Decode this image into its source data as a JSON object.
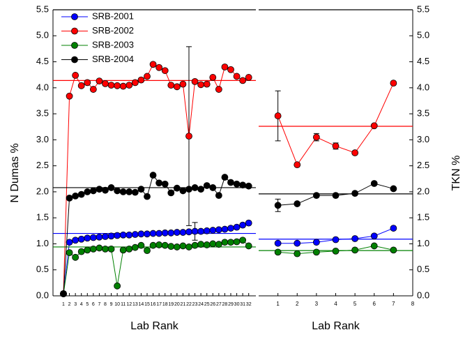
{
  "chart_data": [
    {
      "type": "line",
      "xlabel": "Lab Rank",
      "ylabel": "N Dumas  %",
      "legend": "upper left",
      "x": [
        1,
        2,
        3,
        4,
        5,
        6,
        7,
        8,
        9,
        10,
        11,
        12,
        13,
        14,
        15,
        16,
        17,
        18,
        19,
        20,
        21,
        22,
        23,
        24,
        25,
        26,
        27,
        28,
        29,
        30,
        31,
        32
      ],
      "xlim": [
        -0.75,
        33.2
      ],
      "xticks": [
        1,
        2,
        3,
        4,
        5,
        6,
        7,
        8,
        9,
        10,
        11,
        12,
        13,
        14,
        15,
        16,
        17,
        18,
        19,
        20,
        21,
        22,
        23,
        24,
        25,
        26,
        27,
        28,
        29,
        30,
        31,
        32
      ],
      "ylim": [
        0,
        5.5
      ],
      "yticks": [
        {
          "value": 0,
          "label": "0.0"
        },
        0.5,
        {
          "value": 1,
          "label": "1.0"
        },
        1.5,
        {
          "value": 2,
          "label": "2.0"
        },
        2.5,
        {
          "value": 3,
          "label": "3.0"
        },
        3.5,
        {
          "value": 4,
          "label": "4.0"
        },
        4.5,
        {
          "value": 5,
          "label": "5.0"
        },
        5.5
      ],
      "series": [
        {
          "name": "SRB-2001",
          "color": "#0000ff",
          "mean": 1.2,
          "values": [
            0.04,
            1.03,
            1.07,
            1.09,
            1.11,
            1.12,
            1.13,
            1.14,
            1.15,
            1.16,
            1.17,
            1.17,
            1.18,
            1.19,
            1.19,
            1.2,
            1.2,
            1.21,
            1.21,
            1.22,
            1.22,
            1.23,
            1.24,
            1.24,
            1.25,
            1.26,
            1.27,
            1.28,
            1.3,
            1.32,
            1.36,
            1.4
          ],
          "errors": [
            null,
            null,
            null,
            null,
            null,
            null,
            null,
            null,
            null,
            null,
            null,
            null,
            null,
            null,
            null,
            null,
            null,
            null,
            null,
            null,
            null,
            null,
            0.17,
            null,
            null,
            null,
            null,
            null,
            null,
            null,
            null,
            null
          ]
        },
        {
          "name": "SRB-2002",
          "color": "#ff0000",
          "mean": 4.14,
          "values": [
            0.04,
            3.84,
            4.24,
            4.04,
            4.1,
            3.97,
            4.13,
            4.08,
            4.05,
            4.04,
            4.03,
            4.05,
            4.1,
            4.15,
            4.22,
            4.45,
            4.39,
            4.33,
            4.05,
            4.02,
            4.07,
            3.07,
            4.12,
            4.06,
            4.07,
            4.2,
            3.97,
            4.4,
            4.35,
            4.22,
            4.14,
            4.2
          ],
          "errors": [
            null,
            null,
            null,
            null,
            null,
            null,
            null,
            null,
            null,
            null,
            null,
            null,
            null,
            null,
            null,
            null,
            null,
            null,
            null,
            null,
            null,
            1.72,
            null,
            null,
            null,
            null,
            null,
            null,
            null,
            null,
            null,
            null
          ]
        },
        {
          "name": "SRB-2003",
          "color": "#008000",
          "mean": 0.94,
          "values": [
            0.04,
            0.83,
            0.74,
            0.85,
            0.88,
            0.9,
            0.92,
            0.9,
            0.9,
            0.19,
            0.88,
            0.9,
            0.93,
            0.97,
            0.87,
            0.97,
            0.98,
            0.97,
            0.95,
            0.94,
            0.96,
            0.94,
            0.97,
            0.99,
            0.98,
            1.0,
            0.99,
            1.03,
            1.03,
            1.04,
            1.07,
            0.96
          ]
        },
        {
          "name": "SRB-2004",
          "color": "#000000",
          "mean": 2.08,
          "values": [
            0.04,
            1.88,
            1.92,
            1.95,
            2.0,
            2.02,
            2.05,
            2.03,
            2.08,
            2.02,
            2.0,
            2.0,
            1.99,
            2.05,
            1.91,
            2.32,
            2.17,
            2.15,
            1.98,
            2.07,
            2.02,
            2.05,
            2.08,
            2.05,
            2.12,
            2.08,
            1.93,
            2.28,
            2.18,
            2.15,
            2.13,
            2.11
          ]
        }
      ]
    },
    {
      "type": "line",
      "xlabel": "Lab Rank",
      "ylabel": "TKN  %",
      "x": [
        1,
        2,
        3,
        4,
        5,
        6,
        7
      ],
      "xlim": [
        0,
        8
      ],
      "xticks": [
        1,
        2,
        3,
        4,
        5,
        6,
        7,
        8
      ],
      "ylim": [
        0,
        5.5
      ],
      "yticks": [
        {
          "value": 0,
          "label": "0.0"
        },
        0.5,
        {
          "value": 1,
          "label": "1.0"
        },
        1.5,
        {
          "value": 2,
          "label": "2.0"
        },
        2.5,
        {
          "value": 3,
          "label": "3.0"
        },
        3.5,
        {
          "value": 4,
          "label": "4.0"
        },
        4.5,
        {
          "value": 5,
          "label": "5.0"
        },
        5.5
      ],
      "series": [
        {
          "color": "#0000ff",
          "mean": 1.09,
          "values": [
            1.01,
            1.01,
            1.03,
            1.08,
            1.1,
            1.15,
            1.3
          ]
        },
        {
          "color": "#ff0000",
          "mean": 3.26,
          "values": [
            3.46,
            2.52,
            3.05,
            2.88,
            2.75,
            3.27,
            4.09
          ],
          "errors": [
            0.48,
            null,
            0.07,
            0.06,
            null,
            null,
            null
          ]
        },
        {
          "color": "#008000",
          "mean": 0.87,
          "values": [
            0.84,
            0.81,
            0.84,
            0.86,
            0.88,
            0.96,
            0.88
          ]
        },
        {
          "color": "#000000",
          "mean": 1.96,
          "values": [
            1.74,
            1.77,
            1.93,
            1.93,
            1.97,
            2.16,
            2.06
          ],
          "errors": [
            0.12,
            null,
            null,
            null,
            null,
            null,
            null
          ]
        }
      ]
    }
  ]
}
